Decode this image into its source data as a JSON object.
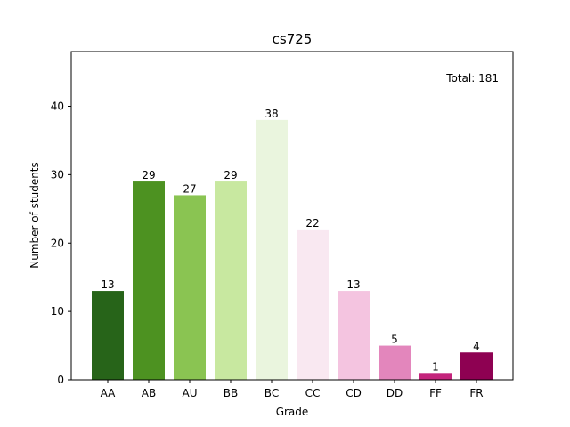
{
  "chart_data": {
    "type": "bar",
    "title": "cs725",
    "xlabel": "Grade",
    "ylabel": "Number of students",
    "categories": [
      "AA",
      "AB",
      "AU",
      "BB",
      "BC",
      "CC",
      "CD",
      "DD",
      "FF",
      "FR"
    ],
    "values": [
      13,
      29,
      27,
      29,
      38,
      22,
      13,
      5,
      1,
      4
    ],
    "colors": [
      "#276419",
      "#4d9221",
      "#8ac452",
      "#c8e8a0",
      "#eaf5de",
      "#f9e8f1",
      "#f4c4e0",
      "#e386bc",
      "#c4247c",
      "#8e0152"
    ],
    "ylim": [
      0,
      48
    ],
    "yticks": [
      0,
      10,
      20,
      30,
      40
    ],
    "grid": false,
    "annotation": "Total: 181"
  }
}
